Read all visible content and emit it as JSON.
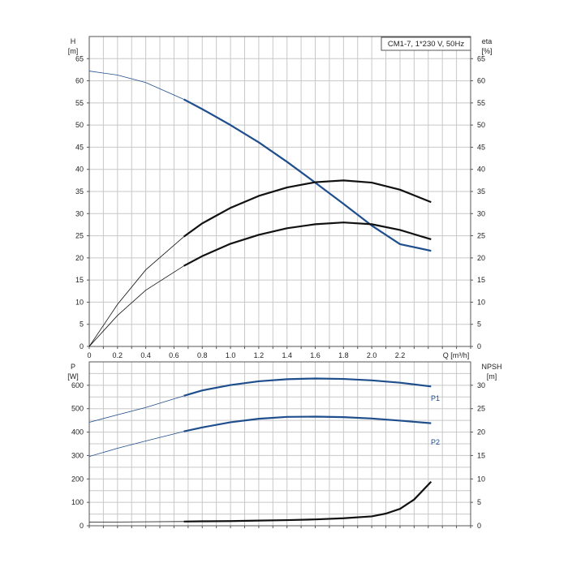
{
  "chart_data": [
    {
      "type": "line",
      "title": "CM1-7, 1*230 V, 50Hz",
      "ylabel_left": "H",
      "ylabel_left_unit": "[m]",
      "ylabel_right": "eta",
      "ylabel_right_unit": "[%]",
      "xlabel": "Q [m³/h]",
      "xlim": [
        0,
        2.7
      ],
      "ylim": [
        0,
        70
      ],
      "x_ticks": [
        "0",
        "0.2",
        "0.4",
        "0.6",
        "0.8",
        "1.0",
        "1.2",
        "1.4",
        "1.6",
        "1.8",
        "2.0",
        "2.2"
      ],
      "y_ticks": [
        "0",
        "5",
        "10",
        "15",
        "20",
        "25",
        "30",
        "35",
        "40",
        "45",
        "50",
        "55",
        "60",
        "65"
      ],
      "grid": true,
      "duty_start_x": 0.67,
      "series": [
        {
          "color": "#1f4e8c",
          "x": [
            0,
            0.2,
            0.4,
            0.67,
            0.8,
            1.0,
            1.2,
            1.4,
            1.6,
            1.8,
            2.0,
            2.2,
            2.42
          ],
          "values": [
            62.2,
            61.3,
            59.6,
            55.8,
            53.6,
            50.0,
            46.1,
            41.7,
            37.0,
            32.2,
            27.3,
            23.1,
            21.6
          ]
        },
        {
          "color": "#111111",
          "x": [
            0,
            0.2,
            0.4,
            0.67,
            0.8,
            1.0,
            1.2,
            1.4,
            1.6,
            1.8,
            2.0,
            2.2,
            2.42
          ],
          "values": [
            0,
            9.5,
            17.3,
            24.8,
            27.8,
            31.3,
            34.0,
            35.9,
            37.1,
            37.5,
            37.0,
            35.4,
            32.6
          ]
        },
        {
          "color": "#111111",
          "x": [
            0,
            0.2,
            0.4,
            0.67,
            0.8,
            1.0,
            1.2,
            1.4,
            1.6,
            1.8,
            2.0,
            2.2,
            2.42
          ],
          "values": [
            0,
            7.0,
            12.7,
            18.2,
            20.4,
            23.2,
            25.2,
            26.7,
            27.6,
            28.0,
            27.6,
            26.3,
            24.2
          ]
        }
      ]
    },
    {
      "type": "line",
      "ylabel_left": "P",
      "ylabel_left_unit": "[W]",
      "ylabel_right": "NPSH",
      "ylabel_right_unit": "[m]",
      "xlim": [
        0,
        2.7
      ],
      "ylim_left": [
        0,
        700
      ],
      "ylim_right": [
        0,
        35
      ],
      "y_ticks_left": [
        "0",
        "100",
        "200",
        "300",
        "400",
        "500",
        "600"
      ],
      "y_ticks_right": [
        "0",
        "5",
        "10",
        "15",
        "20",
        "25",
        "30"
      ],
      "grid": true,
      "duty_start_x": 0.67,
      "series": [
        {
          "name": "P1",
          "color": "#1f4e8c",
          "x": [
            0,
            0.2,
            0.4,
            0.67,
            0.8,
            1.0,
            1.2,
            1.4,
            1.6,
            1.8,
            2.0,
            2.2,
            2.42
          ],
          "values": [
            442,
            474,
            505,
            555,
            578,
            601,
            617,
            626,
            629,
            627,
            621,
            611,
            595
          ]
        },
        {
          "name": "P2",
          "color": "#1f4e8c",
          "x": [
            0,
            0.2,
            0.4,
            0.67,
            0.8,
            1.0,
            1.2,
            1.4,
            1.6,
            1.8,
            2.0,
            2.2,
            2.42
          ],
          "values": [
            296,
            331,
            362,
            403,
            420,
            442,
            457,
            465,
            466,
            464,
            458,
            449,
            438
          ]
        },
        {
          "color": "#111111",
          "axis": "right",
          "x": [
            0,
            0.2,
            0.4,
            0.67,
            0.8,
            1.0,
            1.2,
            1.4,
            1.6,
            1.8,
            2.0,
            2.1,
            2.2,
            2.3,
            2.42
          ],
          "values": [
            0.8,
            0.8,
            0.85,
            0.9,
            0.95,
            1.0,
            1.1,
            1.2,
            1.35,
            1.6,
            2.0,
            2.6,
            3.6,
            5.6,
            9.4
          ]
        }
      ]
    }
  ]
}
